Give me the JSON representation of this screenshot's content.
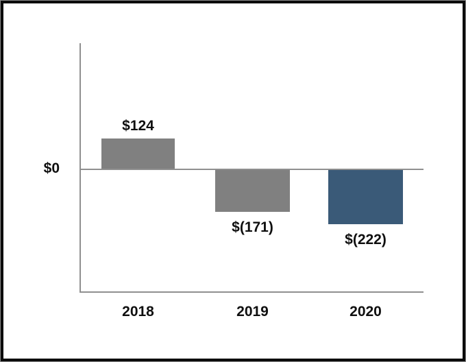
{
  "chart_data": {
    "type": "bar",
    "title": "",
    "xlabel": "",
    "ylabel": "",
    "categories": [
      "2018",
      "2019",
      "2020"
    ],
    "values": [
      124,
      -171,
      -222
    ],
    "value_labels": [
      "$124",
      "$(171)",
      "$(222)"
    ],
    "bar_colors": [
      "#808080",
      "#808080",
      "#3A5A78"
    ],
    "y_ticks": [
      {
        "value": 0,
        "label": "$0"
      }
    ],
    "ylim": [
      -505,
      515
    ],
    "grid": false,
    "legend": false,
    "axis_color": "#8F8F8F",
    "text_color": "#0F0F0F",
    "background": "#FFFFFF",
    "frame_border_color": "#0A0A0A"
  }
}
